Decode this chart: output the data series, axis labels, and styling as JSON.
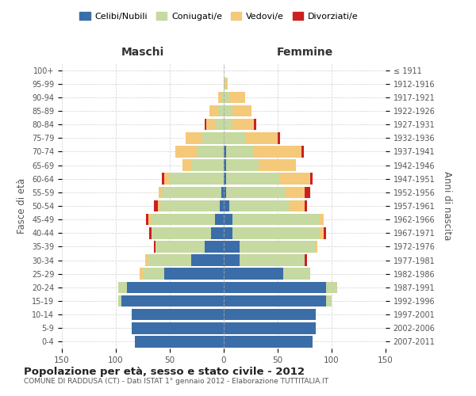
{
  "age_groups": [
    "0-4",
    "5-9",
    "10-14",
    "15-19",
    "20-24",
    "25-29",
    "30-34",
    "35-39",
    "40-44",
    "45-49",
    "50-54",
    "55-59",
    "60-64",
    "65-69",
    "70-74",
    "75-79",
    "80-84",
    "85-89",
    "90-94",
    "95-99",
    "100+"
  ],
  "birth_years": [
    "2007-2011",
    "2002-2006",
    "1997-2001",
    "1992-1996",
    "1987-1991",
    "1982-1986",
    "1977-1981",
    "1972-1976",
    "1967-1971",
    "1962-1966",
    "1957-1961",
    "1952-1956",
    "1947-1951",
    "1942-1946",
    "1937-1941",
    "1932-1936",
    "1927-1931",
    "1922-1926",
    "1917-1921",
    "1912-1916",
    "≤ 1911"
  ],
  "males": {
    "celibi": [
      82,
      85,
      85,
      95,
      90,
      55,
      30,
      18,
      12,
      8,
      4,
      2,
      0,
      0,
      0,
      0,
      0,
      0,
      0,
      0,
      0
    ],
    "coniugati": [
      0,
      0,
      0,
      3,
      8,
      20,
      40,
      45,
      55,
      60,
      55,
      55,
      50,
      30,
      25,
      20,
      8,
      5,
      2,
      0,
      0
    ],
    "vedovi": [
      0,
      0,
      0,
      0,
      0,
      3,
      3,
      0,
      0,
      2,
      2,
      3,
      5,
      8,
      20,
      15,
      8,
      8,
      3,
      0,
      0
    ],
    "divorziati": [
      0,
      0,
      0,
      0,
      0,
      0,
      0,
      2,
      2,
      2,
      4,
      0,
      2,
      0,
      0,
      0,
      2,
      0,
      0,
      0,
      0
    ]
  },
  "females": {
    "nubili": [
      82,
      85,
      85,
      95,
      95,
      55,
      15,
      15,
      8,
      8,
      5,
      2,
      2,
      2,
      2,
      0,
      0,
      0,
      0,
      0,
      0
    ],
    "coniugate": [
      0,
      0,
      0,
      5,
      10,
      25,
      60,
      70,
      80,
      80,
      55,
      55,
      50,
      30,
      25,
      20,
      8,
      8,
      5,
      2,
      0
    ],
    "vedove": [
      0,
      0,
      0,
      0,
      0,
      0,
      0,
      2,
      5,
      5,
      15,
      18,
      28,
      35,
      45,
      30,
      20,
      18,
      15,
      2,
      0
    ],
    "divorziate": [
      0,
      0,
      0,
      0,
      0,
      0,
      2,
      0,
      2,
      0,
      2,
      5,
      2,
      0,
      2,
      2,
      2,
      0,
      0,
      0,
      0
    ]
  },
  "colors": {
    "celibi": "#3B6EA8",
    "coniugati": "#C5D9A0",
    "vedovi": "#F5C97A",
    "divorziati": "#CC2020"
  },
  "title": "Popolazione per età, sesso e stato civile - 2012",
  "subtitle": "COMUNE DI RADDUSA (CT) - Dati ISTAT 1° gennaio 2012 - Elaborazione TUTTITALIA.IT",
  "xlabel_left": "Maschi",
  "xlabel_right": "Femmine",
  "ylabel_left": "Fasce di età",
  "ylabel_right": "Anni di nascita",
  "xlim": 150,
  "legend_labels": [
    "Celibi/Nubili",
    "Coniugati/e",
    "Vedovi/e",
    "Divorziati/e"
  ],
  "bg_color": "#ffffff",
  "grid_color": "#cccccc"
}
